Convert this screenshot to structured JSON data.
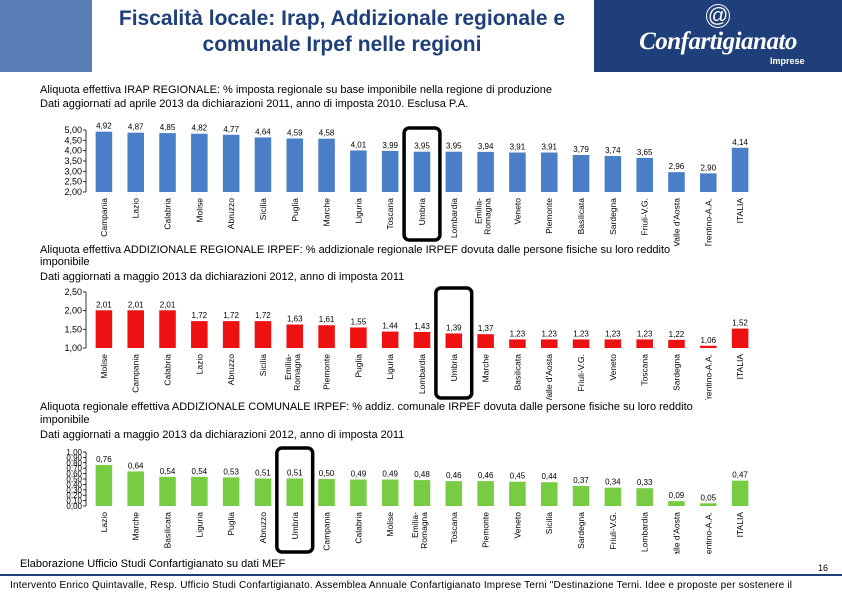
{
  "header": {
    "title": "Fiscalità locale: Irap, Addizionale regionale e comunale Irpef nelle regioni",
    "logo_text": "Confartigianato",
    "logo_sub": "Imprese",
    "logo_symbol": "@"
  },
  "colors": {
    "header_blue": "#1f3f7a",
    "header_light": "#5a7eb6",
    "irap_bar": "#4a7fc8",
    "irpef_reg_bar": "#ee1111",
    "irpef_com_bar": "#77cc44",
    "highlight": "#000000"
  },
  "captions": {
    "irap_line1": "Aliquota effettiva IRAP REGIONALE: % imposta regionale su base imponibile nella regione di produzione",
    "irap_line2": "Dati aggiornati ad aprile 2013 da dichiarazioni 2011, anno di imposta 2010. Esclusa P.A.",
    "reg_line1": "Aliquota effettiva ADDIZIONALE REGIONALE IRPEF: % addizionale regionale IRPEF dovuta dalle persone fisiche su loro reddito",
    "reg_line2": "imponibile",
    "reg_line3": "Dati aggiornati a maggio 2013 da dichiarazioni 2012, anno di imposta 2011",
    "com_line1": "Aliquota regionale effettiva ADDIZIONALE COMUNALE IRPEF: % addiz. comunale IRPEF dovuta dalle persone fisiche su loro reddito",
    "com_line2": "imponibile",
    "com_line3": "Dati aggiornati a maggio 2013 da dichiarazioni 2012, anno di imposta 2011"
  },
  "footer": {
    "source": "Elaborazione Ufficio Studi Confartigianato su dati MEF",
    "page": "16",
    "credit": "Intervento Enrico Quintavalle, Resp. Ufficio Studi Confartigianato. Assemblea Annuale Confartigianato Imprese Terni \"Destinazione Terni. Idee e proposte per sostenere il"
  },
  "chart_data": [
    {
      "type": "bar",
      "id": "irap",
      "categories": [
        "Campania",
        "Lazio",
        "Calabria",
        "Molise",
        "Abruzzo",
        "Sicilia",
        "Puglia",
        "Marche",
        "Liguria",
        "Toscana",
        "Umbria",
        "Lombardia",
        "Emilia-Romagna",
        "Veneto",
        "Piemonte",
        "Basilicata",
        "Sardegna",
        "Friuli-V.G.",
        "Valle d'Aosta",
        "Trentino-A.A.",
        "ITALIA"
      ],
      "values": [
        4.92,
        4.87,
        4.85,
        4.82,
        4.77,
        4.64,
        4.59,
        4.58,
        4.01,
        3.99,
        3.95,
        3.95,
        3.94,
        3.91,
        3.91,
        3.79,
        3.74,
        3.65,
        2.96,
        2.9,
        4.14
      ],
      "value_labels": [
        "4,92",
        "4,87",
        "4,85",
        "4,82",
        "4,77",
        "4,64",
        "4,59",
        "4,58",
        "4,01",
        "3,99",
        "3,95",
        "3,95",
        "3,94",
        "3,91",
        "3,91",
        "3,79",
        "3,74",
        "3,65",
        "2,96",
        "2,90",
        "4,14"
      ],
      "ylim": [
        2.0,
        5.0
      ],
      "yticks": [
        "2,00",
        "2,50",
        "3,00",
        "3,50",
        "4,00",
        "4,50",
        "5,00"
      ],
      "highlight": "Umbria"
    },
    {
      "type": "bar",
      "id": "add_regionale",
      "categories": [
        "Molise",
        "Campania",
        "Calabria",
        "Lazio",
        "Abruzzo",
        "Sicilia",
        "Emilia-Romagna",
        "Piemonte",
        "Puglia",
        "Liguria",
        "Lombardia",
        "Umbria",
        "Marche",
        "Basilicata",
        "Valle d'Aosta",
        "Friuli-V.G.",
        "Veneto",
        "Toscana",
        "Sardegna",
        "Trentino-A.A.",
        "ITALIA"
      ],
      "values": [
        2.01,
        2.01,
        2.01,
        1.72,
        1.72,
        1.72,
        1.63,
        1.61,
        1.55,
        1.44,
        1.43,
        1.39,
        1.37,
        1.23,
        1.23,
        1.23,
        1.23,
        1.23,
        1.22,
        1.06,
        1.52
      ],
      "value_labels": [
        "2,01",
        "2,01",
        "2,01",
        "1,72",
        "1,72",
        "1,72",
        "1,63",
        "1,61",
        "1,55",
        "1,44",
        "1,43",
        "1,39",
        "1,37",
        "1,23",
        "1,23",
        "1,23",
        "1,23",
        "1,23",
        "1,22",
        "1,06",
        "1,52"
      ],
      "ylim": [
        1.0,
        2.5
      ],
      "yticks": [
        "1,00",
        "1,50",
        "2,00",
        "2,50"
      ],
      "highlight": "Umbria"
    },
    {
      "type": "bar",
      "id": "add_comunale",
      "categories": [
        "Lazio",
        "Marche",
        "Basilicata",
        "Liguria",
        "Puglia",
        "Abruzzo",
        "Umbria",
        "Campania",
        "Calabria",
        "Molise",
        "Emilia-Romagna",
        "Toscana",
        "Piemonte",
        "Veneto",
        "Sicilia",
        "Sardegna",
        "Friuli-V.G.",
        "Lombardia",
        "Valle d'Aosta",
        "Trentino-A.A.",
        "ITALIA"
      ],
      "values": [
        0.76,
        0.64,
        0.54,
        0.54,
        0.53,
        0.51,
        0.51,
        0.5,
        0.49,
        0.49,
        0.48,
        0.46,
        0.46,
        0.45,
        0.44,
        0.37,
        0.34,
        0.33,
        0.09,
        0.05,
        0.47
      ],
      "value_labels": [
        "0,76",
        "0,64",
        "0,54",
        "0,54",
        "0,53",
        "0,51",
        "0,51",
        "0,50",
        "0,49",
        "0,49",
        "0,48",
        "0,46",
        "0,46",
        "0,45",
        "0,44",
        "0,37",
        "0,34",
        "0,33",
        "0,09",
        "0,05",
        "0,47"
      ],
      "ylim": [
        0.0,
        1.0
      ],
      "yticks": [
        "0,00",
        "0,10",
        "0,20",
        "0,30",
        "0,40",
        "0,50",
        "0,60",
        "0,70",
        "0,80",
        "0,90",
        "1,00"
      ],
      "highlight": "Umbria"
    }
  ]
}
